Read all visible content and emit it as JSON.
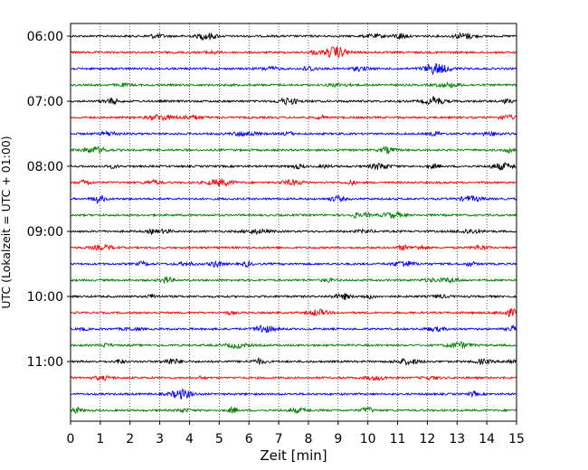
{
  "chart_data": {
    "type": "line",
    "title": "",
    "xlabel": "Zeit  [min]",
    "ylabel": "UTC (Lokalzeit = UTC + 01:00)",
    "xlim": [
      0,
      15
    ],
    "x_ticks": [
      "0",
      "1",
      "2",
      "3",
      "4",
      "5",
      "6",
      "7",
      "8",
      "9",
      "10",
      "11",
      "12",
      "13",
      "14",
      "15"
    ],
    "y_ticks": [
      "06:00",
      "07:00",
      "08:00",
      "09:00",
      "10:00",
      "11:00"
    ],
    "y_tick_rows": [
      0,
      4,
      8,
      12,
      16,
      20
    ],
    "grid": "vertical-dotted",
    "trace_interval_minutes": 15,
    "traces": [
      {
        "start": "06:00",
        "color": "#000000"
      },
      {
        "start": "06:15",
        "color": "#ff0000"
      },
      {
        "start": "06:30",
        "color": "#0000ff"
      },
      {
        "start": "06:45",
        "color": "#008000"
      },
      {
        "start": "07:00",
        "color": "#000000"
      },
      {
        "start": "07:15",
        "color": "#ff0000"
      },
      {
        "start": "07:30",
        "color": "#0000ff"
      },
      {
        "start": "07:45",
        "color": "#008000"
      },
      {
        "start": "08:00",
        "color": "#000000"
      },
      {
        "start": "08:15",
        "color": "#ff0000"
      },
      {
        "start": "08:30",
        "color": "#0000ff"
      },
      {
        "start": "08:45",
        "color": "#008000"
      },
      {
        "start": "09:00",
        "color": "#000000"
      },
      {
        "start": "09:15",
        "color": "#ff0000"
      },
      {
        "start": "09:30",
        "color": "#0000ff"
      },
      {
        "start": "09:45",
        "color": "#008000"
      },
      {
        "start": "10:00",
        "color": "#000000"
      },
      {
        "start": "10:15",
        "color": "#ff0000"
      },
      {
        "start": "10:30",
        "color": "#0000ff"
      },
      {
        "start": "10:45",
        "color": "#008000"
      },
      {
        "start": "11:00",
        "color": "#000000"
      },
      {
        "start": "11:15",
        "color": "#ff0000"
      },
      {
        "start": "11:30",
        "color": "#0000ff"
      },
      {
        "start": "11:45",
        "color": "#008000"
      }
    ]
  }
}
